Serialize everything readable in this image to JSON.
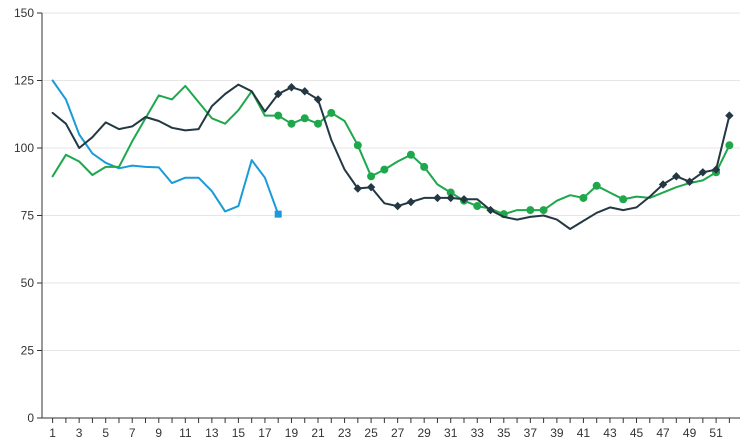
{
  "chart_data": {
    "type": "line",
    "title": "",
    "xlabel": "",
    "ylabel": "",
    "x": [
      1,
      2,
      3,
      4,
      5,
      6,
      7,
      8,
      9,
      10,
      11,
      12,
      13,
      14,
      15,
      16,
      17,
      18,
      19,
      20,
      21,
      22,
      23,
      24,
      25,
      26,
      27,
      28,
      29,
      30,
      31,
      32,
      33,
      34,
      35,
      36,
      37,
      38,
      39,
      40,
      41,
      42,
      43,
      44,
      45,
      46,
      47,
      48,
      49,
      50,
      51,
      52
    ],
    "xlim": [
      0.2,
      52.8
    ],
    "ylim": [
      0,
      150
    ],
    "y_ticks": [
      0,
      25,
      50,
      75,
      100,
      125,
      150
    ],
    "x_tick_labels": [
      "1",
      "3",
      "5",
      "7",
      "9",
      "11",
      "13",
      "15",
      "17",
      "19",
      "21",
      "23",
      "25",
      "27",
      "29",
      "31",
      "33",
      "35",
      "37",
      "39",
      "41",
      "43",
      "45",
      "47",
      "49",
      "51"
    ],
    "grid": "horizontal",
    "series": [
      {
        "color": "#1a9ad8",
        "marker": "square",
        "values": [
          125,
          118,
          105,
          98,
          94.5,
          92.5,
          93.5,
          93,
          92.8,
          87,
          89,
          89,
          84,
          76.5,
          78.5,
          95.5,
          89,
          75.5,
          null,
          null,
          null,
          null,
          null,
          null,
          null,
          null,
          null,
          null,
          null,
          null,
          null,
          null,
          null,
          null,
          null,
          null,
          null,
          null,
          null,
          null,
          null,
          null,
          null,
          null,
          null,
          null,
          null,
          null,
          null,
          null,
          null,
          null
        ],
        "marker_points": [
          18
        ]
      },
      {
        "color": "#1ea84b",
        "marker": "circle",
        "values": [
          89.5,
          97.5,
          95,
          90,
          93,
          93,
          102.5,
          111,
          119.5,
          118,
          123,
          117,
          111,
          109,
          114,
          121,
          112,
          112,
          109,
          111,
          109,
          113,
          110,
          101,
          89.5,
          92,
          95,
          97.5,
          93,
          86.5,
          83.5,
          80.5,
          78.5,
          77.5,
          75.5,
          77,
          77,
          77,
          80.5,
          82.5,
          81.5,
          86,
          83.5,
          81,
          82,
          81.5,
          83.5,
          85.5,
          87,
          88,
          91,
          101
        ],
        "marker_points": [
          18,
          19,
          20,
          21,
          22,
          24,
          25,
          26,
          28,
          29,
          31,
          32,
          33,
          35,
          37,
          38,
          41,
          42,
          44,
          51,
          52
        ]
      },
      {
        "color": "#243843",
        "marker": "diamond",
        "values": [
          113,
          109,
          100,
          104,
          109.5,
          107,
          108,
          111.5,
          110,
          107.5,
          106.5,
          107,
          115.5,
          120,
          123.5,
          121,
          113.5,
          120,
          122.5,
          121,
          118,
          103,
          92,
          85,
          85.5,
          79.5,
          78.5,
          80,
          81.5,
          81.5,
          81.5,
          81,
          81,
          77,
          74.5,
          73.5,
          74.5,
          75,
          73.5,
          70,
          73,
          76,
          78,
          77,
          78,
          82,
          86.5,
          89.5,
          87.5,
          91,
          92,
          112
        ],
        "marker_points": [
          18,
          19,
          20,
          21,
          24,
          25,
          27,
          28,
          30,
          31,
          32,
          34,
          47,
          48,
          49,
          50,
          51,
          52
        ]
      }
    ]
  }
}
